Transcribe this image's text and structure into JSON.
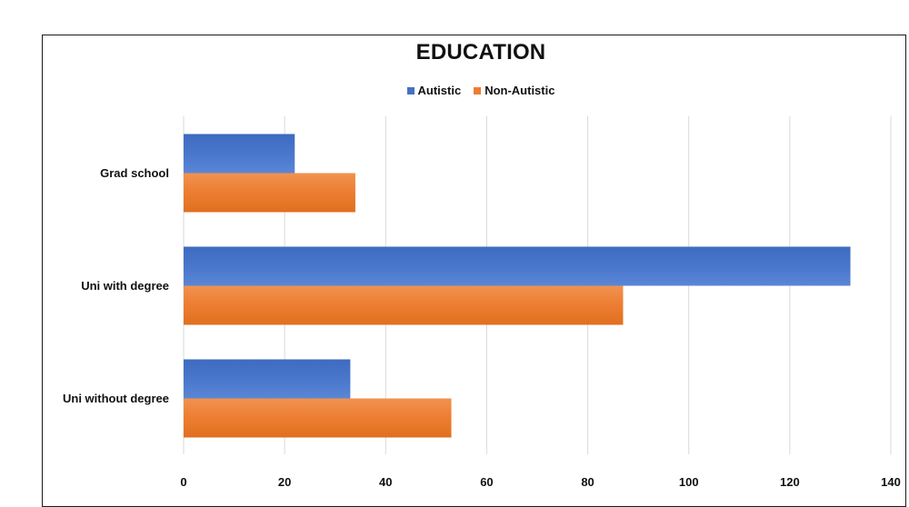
{
  "chart_data": {
    "type": "bar",
    "orientation": "horizontal",
    "title": "EDUCATION",
    "categories": [
      "Grad school",
      "Uni with degree",
      "Uni without degree"
    ],
    "series": [
      {
        "name": "Autistic",
        "color": "#4472c4",
        "values": [
          22,
          132,
          33
        ]
      },
      {
        "name": "Non-Autistic",
        "color": "#ed7d31",
        "values": [
          34,
          87,
          53
        ]
      }
    ],
    "xlim": [
      0,
      140
    ],
    "xticks": [
      0,
      20,
      40,
      60,
      80,
      100,
      120,
      140
    ],
    "grid": true,
    "legend_position": "top"
  }
}
